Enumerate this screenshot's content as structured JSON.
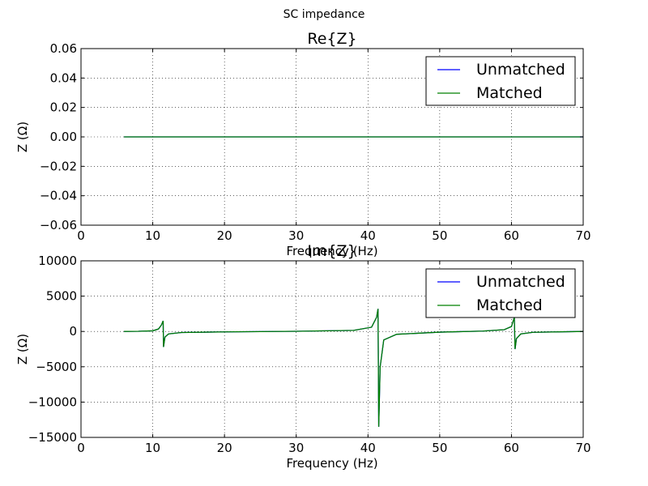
{
  "figure": {
    "title": "SC impedance"
  },
  "chart_data": [
    {
      "type": "line",
      "title": "Re{Z}",
      "xlabel": "Frequency (Hz)",
      "ylabel": "Z (Ω)",
      "xlim": [
        0,
        70
      ],
      "ylim": [
        -0.06,
        0.06
      ],
      "xticks": [
        0,
        10,
        20,
        30,
        40,
        50,
        60,
        70
      ],
      "xtick_labels": [
        "0",
        "10",
        "20",
        "30",
        "40",
        "50",
        "60",
        "70"
      ],
      "yticks": [
        -0.06,
        -0.04,
        -0.02,
        0.0,
        0.02,
        0.04,
        0.06
      ],
      "ytick_labels": [
        "−0.06",
        "−0.04",
        "−0.02",
        "0.00",
        "0.02",
        "0.04",
        "0.06"
      ],
      "grid": true,
      "legend_position": "top-right",
      "series": [
        {
          "name": "Unmatched",
          "color": "#0000ff",
          "x": [
            6,
            10,
            20,
            30,
            40,
            50,
            60,
            70
          ],
          "y": [
            0,
            0,
            0,
            0,
            0,
            0,
            0,
            0
          ]
        },
        {
          "name": "Matched",
          "color": "#008000",
          "x": [
            6,
            10,
            20,
            30,
            40,
            50,
            60,
            70
          ],
          "y": [
            0,
            0,
            0,
            0,
            0,
            0,
            0,
            0
          ]
        }
      ]
    },
    {
      "type": "line",
      "title": "Im{Z}",
      "xlabel": "Frequency (Hz)",
      "ylabel": "Z (Ω)",
      "xlim": [
        0,
        70
      ],
      "ylim": [
        -15000,
        10000
      ],
      "xticks": [
        0,
        10,
        20,
        30,
        40,
        50,
        60,
        70
      ],
      "xtick_labels": [
        "0",
        "10",
        "20",
        "30",
        "40",
        "50",
        "60",
        "70"
      ],
      "yticks": [
        -15000,
        -10000,
        -5000,
        0,
        5000,
        10000
      ],
      "ytick_labels": [
        "−15000",
        "−10000",
        "−5000",
        "0",
        "5000",
        "10000"
      ],
      "grid": true,
      "legend_position": "top-right",
      "series": [
        {
          "name": "Unmatched",
          "color": "#0000ff",
          "x": [
            6,
            8,
            10,
            10.8,
            11.2,
            11.45,
            11.5,
            11.7,
            12.2,
            14,
            20,
            30,
            38,
            40.5,
            41.2,
            41.4,
            41.5,
            41.7,
            42.2,
            44,
            50,
            56,
            59,
            60,
            60.4,
            60.5,
            60.7,
            61.3,
            63,
            70
          ],
          "y": [
            0,
            20,
            90,
            350,
            900,
            1500,
            -2200,
            -800,
            -350,
            -150,
            -60,
            20,
            150,
            600,
            2000,
            3200,
            -13500,
            -5000,
            -1200,
            -400,
            -100,
            50,
            250,
            700,
            2000,
            -2500,
            -1000,
            -350,
            -120,
            0
          ]
        },
        {
          "name": "Matched",
          "color": "#008000",
          "x": [
            6,
            8,
            10,
            10.8,
            11.2,
            11.45,
            11.5,
            11.7,
            12.2,
            14,
            20,
            30,
            38,
            40.5,
            41.2,
            41.4,
            41.5,
            41.7,
            42.2,
            44,
            50,
            56,
            59,
            60,
            60.4,
            60.5,
            60.7,
            61.3,
            63,
            70
          ],
          "y": [
            0,
            20,
            90,
            350,
            900,
            1500,
            -2200,
            -800,
            -350,
            -150,
            -60,
            20,
            150,
            600,
            2000,
            3200,
            -13500,
            -5000,
            -1200,
            -400,
            -100,
            50,
            250,
            700,
            2000,
            -2500,
            -1000,
            -350,
            -120,
            0
          ]
        }
      ]
    }
  ]
}
